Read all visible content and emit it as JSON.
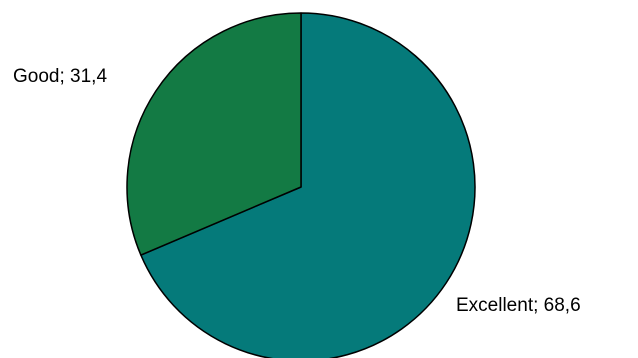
{
  "chart_data": {
    "type": "pie",
    "title": "",
    "start_angle_deg": 0,
    "direction": "clockwise",
    "slices": [
      {
        "label": "Excellent",
        "value": 68.6,
        "display": "Excellent; 68,6",
        "color": "#057A7A"
      },
      {
        "label": "Good",
        "value": 31.4,
        "display": "Good; 31,4",
        "color": "#137A44"
      }
    ],
    "stroke_color": "#000000",
    "legend": "none"
  }
}
